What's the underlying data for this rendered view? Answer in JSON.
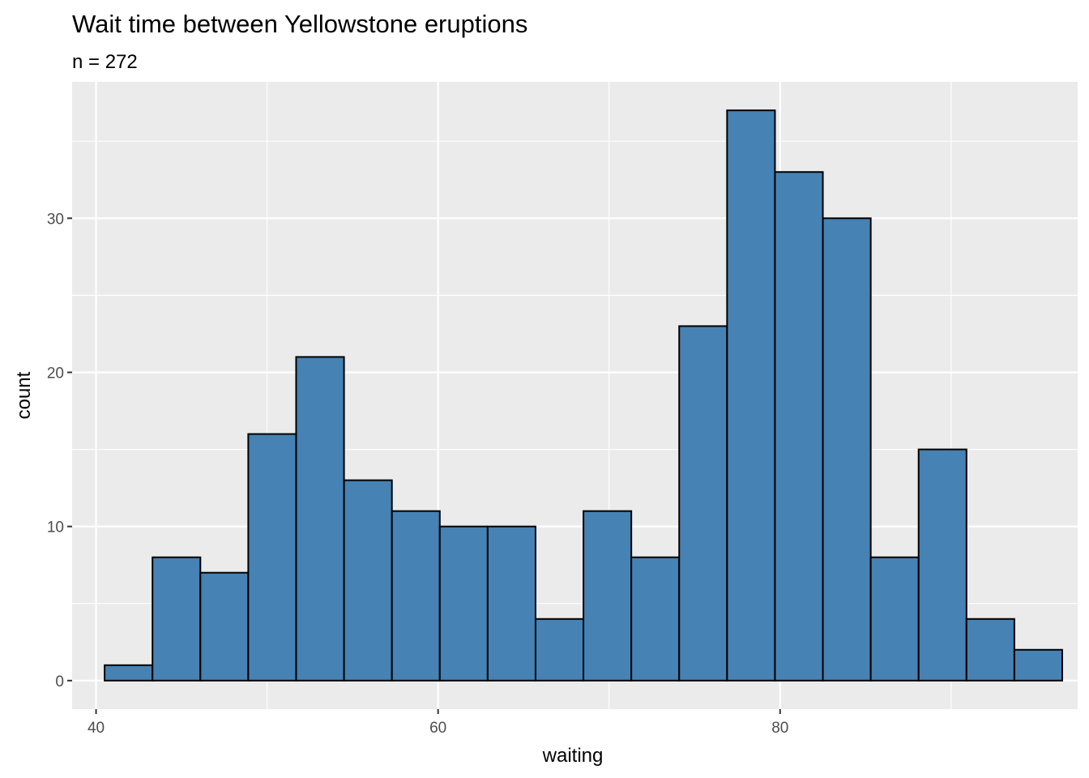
{
  "chart_data": {
    "type": "bar",
    "title": "Wait time between Yellowstone eruptions",
    "subtitle": "n = 272",
    "xlabel": "waiting",
    "ylabel": "count",
    "xlim": [
      38.6,
      97.4
    ],
    "ylim": [
      -1.85,
      38.85
    ],
    "x_ticks": [
      40,
      60,
      80
    ],
    "y_ticks": [
      0,
      10,
      20,
      30
    ],
    "grid": true,
    "fill_color": "#4682b4",
    "edge_color": "#000000",
    "panel_background": "#ebebeb",
    "bins": [
      {
        "xmin": 40.5,
        "xmax": 43.3,
        "count": 1
      },
      {
        "xmin": 43.3,
        "xmax": 46.1,
        "count": 8
      },
      {
        "xmin": 46.1,
        "xmax": 48.9,
        "count": 7
      },
      {
        "xmin": 48.9,
        "xmax": 51.7,
        "count": 16
      },
      {
        "xmin": 51.7,
        "xmax": 54.5,
        "count": 21
      },
      {
        "xmin": 54.5,
        "xmax": 57.3,
        "count": 13
      },
      {
        "xmin": 57.3,
        "xmax": 60.1,
        "count": 11
      },
      {
        "xmin": 60.1,
        "xmax": 62.9,
        "count": 10
      },
      {
        "xmin": 62.9,
        "xmax": 65.7,
        "count": 10
      },
      {
        "xmin": 65.7,
        "xmax": 68.5,
        "count": 4
      },
      {
        "xmin": 68.5,
        "xmax": 71.3,
        "count": 11
      },
      {
        "xmin": 71.3,
        "xmax": 74.1,
        "count": 8
      },
      {
        "xmin": 74.1,
        "xmax": 76.9,
        "count": 23
      },
      {
        "xmin": 76.9,
        "xmax": 79.7,
        "count": 37
      },
      {
        "xmin": 79.7,
        "xmax": 82.5,
        "count": 33
      },
      {
        "xmin": 82.5,
        "xmax": 85.3,
        "count": 30
      },
      {
        "xmin": 85.3,
        "xmax": 88.1,
        "count": 8
      },
      {
        "xmin": 88.1,
        "xmax": 90.9,
        "count": 15
      },
      {
        "xmin": 90.9,
        "xmax": 93.7,
        "count": 4
      },
      {
        "xmin": 93.7,
        "xmax": 96.5,
        "count": 2
      }
    ]
  }
}
